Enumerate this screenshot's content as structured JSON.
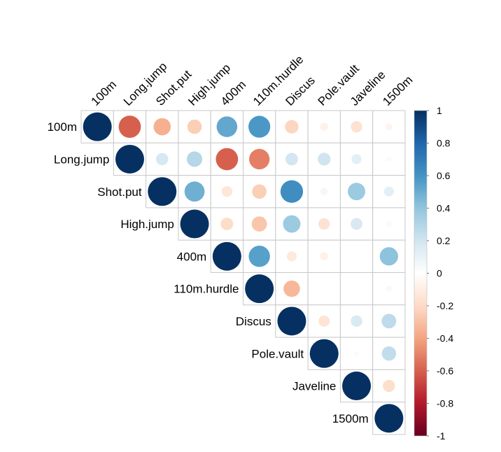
{
  "chart_data": {
    "type": "heatmap",
    "variables": [
      "100m",
      "Long.jump",
      "Shot.put",
      "High.jump",
      "400m",
      "110m.hurdle",
      "Discus",
      "Pole.vault",
      "Javeline",
      "1500m"
    ],
    "matrix": [
      [
        1.0,
        -0.6,
        -0.36,
        -0.25,
        0.52,
        0.58,
        -0.22,
        -0.08,
        -0.16,
        -0.06
      ],
      [
        null,
        1.0,
        0.18,
        0.29,
        -0.6,
        -0.51,
        0.19,
        0.2,
        0.12,
        -0.03
      ],
      [
        null,
        null,
        1.0,
        0.49,
        -0.14,
        -0.25,
        0.62,
        0.06,
        0.37,
        0.12
      ],
      [
        null,
        null,
        null,
        1.0,
        -0.19,
        -0.28,
        0.37,
        -0.16,
        0.17,
        -0.04
      ],
      [
        null,
        null,
        null,
        null,
        1.0,
        0.55,
        -0.12,
        -0.08,
        0.0,
        0.41
      ],
      [
        null,
        null,
        null,
        null,
        null,
        1.0,
        -0.33,
        0.0,
        0.0,
        0.04
      ],
      [
        null,
        null,
        null,
        null,
        null,
        null,
        1.0,
        -0.15,
        0.16,
        0.26
      ],
      [
        null,
        null,
        null,
        null,
        null,
        null,
        null,
        1.0,
        -0.03,
        0.25
      ],
      [
        null,
        null,
        null,
        null,
        null,
        null,
        null,
        null,
        1.0,
        -0.18
      ],
      [
        null,
        null,
        null,
        null,
        null,
        null,
        null,
        null,
        null,
        1.0
      ]
    ],
    "colorbar": {
      "min": -1,
      "max": 1,
      "ticks": [
        "1",
        "0.8",
        "0.6",
        "0.4",
        "0.2",
        "0",
        "-0.2",
        "-0.4",
        "-0.6",
        "-0.8",
        "-1"
      ]
    },
    "colors": [
      "#67001F",
      "#B2182B",
      "#D6604D",
      "#F4A582",
      "#FDDBC7",
      "#FFFFFF",
      "#D1E5F0",
      "#92C5DE",
      "#4393C3",
      "#2166AC",
      "#053061"
    ],
    "grid": true,
    "legend_position": "right"
  }
}
